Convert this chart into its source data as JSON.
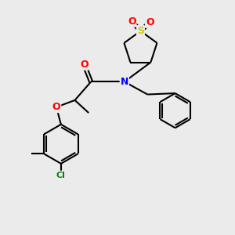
{
  "background_color": "#ebebeb",
  "bond_color": "#000000",
  "atom_colors": {
    "O": "#ff0000",
    "N": "#0000ff",
    "S": "#cccc00",
    "Cl": "#008800",
    "C": "#000000"
  },
  "line_width": 1.5,
  "figsize": [
    3.0,
    3.0
  ],
  "dpi": 100
}
